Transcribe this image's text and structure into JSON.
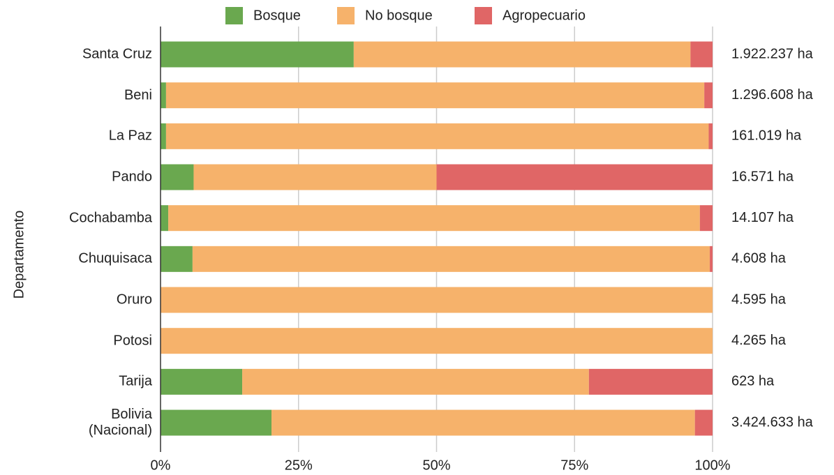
{
  "chart_data": {
    "type": "stacked_bar_horizontal",
    "y_label": "Departamento",
    "categories": [
      "Santa Cruz",
      "Beni",
      "La Paz",
      "Pando",
      "Cochabamba",
      "Chuquisaca",
      "Oruro",
      "Potosi",
      "Tarija",
      "Bolivia\n(Nacional)"
    ],
    "series": [
      {
        "name": "Bosque",
        "color": "#6aa84f",
        "values": [
          35,
          1,
          1,
          6,
          1.4,
          5.8,
          0,
          0,
          14.8,
          20.1
        ]
      },
      {
        "name": "No bosque",
        "color": "#f6b26b",
        "values": [
          61,
          97.5,
          98.3,
          44,
          96.3,
          93.7,
          100,
          100,
          62.8,
          76.7
        ]
      },
      {
        "name": "Agropecuario",
        "color": "#e06666",
        "values": [
          4,
          1.5,
          0.7,
          50,
          2.3,
          0.5,
          0,
          0,
          22.4,
          3.2
        ]
      }
    ],
    "annotations": [
      "1.922.237 ha",
      "1.296.608 ha",
      "161.019 ha",
      "16.571 ha",
      "14.107 ha",
      "4.608 ha",
      "4.595 ha",
      "4.265 ha",
      "623 ha",
      "3.424.633 ha"
    ],
    "xlim": [
      0,
      100
    ],
    "xticks": [
      {
        "value": 0,
        "label": "0%"
      },
      {
        "value": 25,
        "label": "25%"
      },
      {
        "value": 50,
        "label": "50%"
      },
      {
        "value": 75,
        "label": "75%"
      },
      {
        "value": 100,
        "label": "100%"
      }
    ],
    "grid": true,
    "legend": "top"
  }
}
